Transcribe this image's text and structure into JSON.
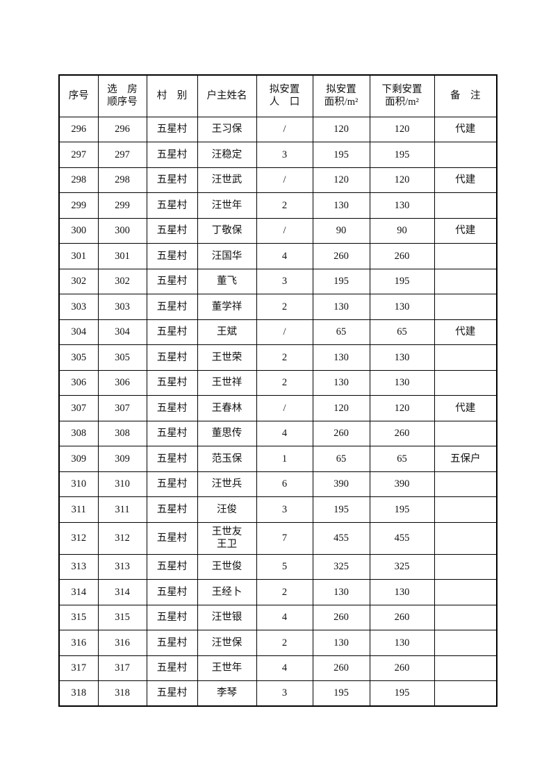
{
  "page": {
    "background": "#ffffff",
    "text_color": "#111111",
    "border_color": "#000000"
  },
  "table": {
    "headers": [
      "序号",
      "选　房\n顺序号",
      "村　别",
      "户主姓名",
      "拟安置\n人　口",
      "拟安置\n面积/m²",
      "下剩安置\n面积/m²",
      "备　注"
    ],
    "column_keys": [
      "seq",
      "order",
      "village",
      "name",
      "population",
      "area",
      "remaining",
      "remark"
    ],
    "rows": [
      {
        "seq": "296",
        "order": "296",
        "village": "五星村",
        "name": "王习保",
        "population": "/",
        "area": "120",
        "remaining": "120",
        "remark": "代建",
        "tall": false
      },
      {
        "seq": "297",
        "order": "297",
        "village": "五星村",
        "name": "汪稳定",
        "population": "3",
        "area": "195",
        "remaining": "195",
        "remark": "",
        "tall": false
      },
      {
        "seq": "298",
        "order": "298",
        "village": "五星村",
        "name": "汪世武",
        "population": "/",
        "area": "120",
        "remaining": "120",
        "remark": "代建",
        "tall": false
      },
      {
        "seq": "299",
        "order": "299",
        "village": "五星村",
        "name": "汪世年",
        "population": "2",
        "area": "130",
        "remaining": "130",
        "remark": "",
        "tall": false
      },
      {
        "seq": "300",
        "order": "300",
        "village": "五星村",
        "name": "丁敬保",
        "population": "/",
        "area": "90",
        "remaining": "90",
        "remark": "代建",
        "tall": false
      },
      {
        "seq": "301",
        "order": "301",
        "village": "五星村",
        "name": "汪国华",
        "population": "4",
        "area": "260",
        "remaining": "260",
        "remark": "",
        "tall": false
      },
      {
        "seq": "302",
        "order": "302",
        "village": "五星村",
        "name": "董飞",
        "population": "3",
        "area": "195",
        "remaining": "195",
        "remark": "",
        "tall": false
      },
      {
        "seq": "303",
        "order": "303",
        "village": "五星村",
        "name": "董学祥",
        "population": "2",
        "area": "130",
        "remaining": "130",
        "remark": "",
        "tall": false
      },
      {
        "seq": "304",
        "order": "304",
        "village": "五星村",
        "name": "王斌",
        "population": "/",
        "area": "65",
        "remaining": "65",
        "remark": "代建",
        "tall": false
      },
      {
        "seq": "305",
        "order": "305",
        "village": "五星村",
        "name": "王世荣",
        "population": "2",
        "area": "130",
        "remaining": "130",
        "remark": "",
        "tall": false
      },
      {
        "seq": "306",
        "order": "306",
        "village": "五星村",
        "name": "王世祥",
        "population": "2",
        "area": "130",
        "remaining": "130",
        "remark": "",
        "tall": false
      },
      {
        "seq": "307",
        "order": "307",
        "village": "五星村",
        "name": "王春林",
        "population": "/",
        "area": "120",
        "remaining": "120",
        "remark": "代建",
        "tall": false
      },
      {
        "seq": "308",
        "order": "308",
        "village": "五星村",
        "name": "董思传",
        "population": "4",
        "area": "260",
        "remaining": "260",
        "remark": "",
        "tall": false
      },
      {
        "seq": "309",
        "order": "309",
        "village": "五星村",
        "name": "范玉保",
        "population": "1",
        "area": "65",
        "remaining": "65",
        "remark": "五保户",
        "tall": false
      },
      {
        "seq": "310",
        "order": "310",
        "village": "五星村",
        "name": "汪世兵",
        "population": "6",
        "area": "390",
        "remaining": "390",
        "remark": "",
        "tall": false
      },
      {
        "seq": "311",
        "order": "311",
        "village": "五星村",
        "name": "汪俊",
        "population": "3",
        "area": "195",
        "remaining": "195",
        "remark": "",
        "tall": false
      },
      {
        "seq": "312",
        "order": "312",
        "village": "五星村",
        "name": "王世友\n王卫",
        "population": "7",
        "area": "455",
        "remaining": "455",
        "remark": "",
        "tall": true
      },
      {
        "seq": "313",
        "order": "313",
        "village": "五星村",
        "name": "王世俊",
        "population": "5",
        "area": "325",
        "remaining": "325",
        "remark": "",
        "tall": false
      },
      {
        "seq": "314",
        "order": "314",
        "village": "五星村",
        "name": "王经卜",
        "population": "2",
        "area": "130",
        "remaining": "130",
        "remark": "",
        "tall": false
      },
      {
        "seq": "315",
        "order": "315",
        "village": "五星村",
        "name": "汪世银",
        "population": "4",
        "area": "260",
        "remaining": "260",
        "remark": "",
        "tall": false
      },
      {
        "seq": "316",
        "order": "316",
        "village": "五星村",
        "name": "汪世保",
        "population": "2",
        "area": "130",
        "remaining": "130",
        "remark": "",
        "tall": false
      },
      {
        "seq": "317",
        "order": "317",
        "village": "五星村",
        "name": "王世年",
        "population": "4",
        "area": "260",
        "remaining": "260",
        "remark": "",
        "tall": false
      },
      {
        "seq": "318",
        "order": "318",
        "village": "五星村",
        "name": "李琴",
        "population": "3",
        "area": "195",
        "remaining": "195",
        "remark": "",
        "tall": false
      }
    ]
  }
}
